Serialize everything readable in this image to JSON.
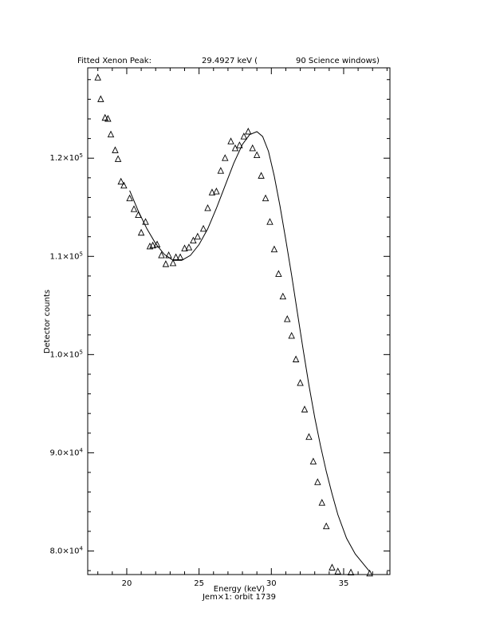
{
  "chart_data": {
    "type": "scatter",
    "title_parts": [
      "Fitted Xenon Peak:",
      "29.4927 keV (",
      "90 Science windows)"
    ],
    "xlabel": "Energy (keV)",
    "subtitle": "Jem×1: orbit 1739",
    "ylabel": "Detector counts",
    "xlim": [
      17.3,
      38.2
    ],
    "ylim": [
      77600,
      129200
    ],
    "x_ticks": [
      20,
      25,
      30,
      35
    ],
    "y_ticks": [
      {
        "value": 80000,
        "mantissa": "8.0×10",
        "exp": "4"
      },
      {
        "value": 90000,
        "mantissa": "9.0×10",
        "exp": "4"
      },
      {
        "value": 100000,
        "mantissa": "1.0×10",
        "exp": "5"
      },
      {
        "value": 110000,
        "mantissa": "1.1×10",
        "exp": "5"
      },
      {
        "value": 120000,
        "mantissa": "1.2×10",
        "exp": "5"
      }
    ],
    "grid": false,
    "series": [
      {
        "kind": "points",
        "marker": "triangle",
        "x": [
          18.0,
          18.2,
          18.5,
          18.7,
          18.9,
          19.2,
          19.4,
          19.6,
          19.8,
          20.2,
          20.5,
          20.8,
          21.0,
          21.3,
          21.6,
          21.8,
          22.1,
          22.4,
          22.7,
          22.9,
          23.2,
          23.4,
          23.7,
          24.0,
          24.3,
          24.6,
          24.9,
          25.3,
          25.6,
          25.9,
          26.2,
          26.5,
          26.8,
          27.2,
          27.5,
          27.8,
          28.1,
          28.4,
          28.7,
          29.0,
          29.3,
          29.6,
          29.9,
          30.2,
          30.5,
          30.8,
          31.1,
          31.4,
          31.7,
          32.0,
          32.3,
          32.6,
          32.9,
          33.2,
          33.5,
          33.8,
          34.2,
          34.6,
          35.5,
          36.8
        ],
        "y": [
          128200,
          126000,
          124100,
          124000,
          122400,
          120800,
          119900,
          117600,
          117200,
          115900,
          114800,
          114200,
          112400,
          113500,
          111000,
          111100,
          111200,
          110100,
          109200,
          110100,
          109300,
          109900,
          109900,
          110800,
          110900,
          111600,
          112000,
          112800,
          114900,
          116500,
          116600,
          118700,
          120000,
          121700,
          121000,
          121300,
          122200,
          122700,
          121000,
          120300,
          118200,
          115900,
          113500,
          110700,
          108200,
          105900,
          103600,
          101900,
          99500,
          97100,
          94400,
          91600,
          89100,
          87000,
          84900,
          82500,
          78300,
          77900,
          77800,
          77700
        ]
      },
      {
        "kind": "fit_line",
        "x": [
          20.2,
          20.8,
          21.4,
          22.0,
          22.6,
          23.2,
          23.8,
          24.4,
          25.0,
          25.6,
          26.2,
          26.8,
          27.4,
          28.0,
          28.5,
          29.0,
          29.4,
          29.8,
          30.2,
          30.6,
          31.0,
          31.4,
          31.8,
          32.2,
          32.6,
          33.0,
          33.4,
          33.8,
          34.2,
          34.6,
          35.2,
          35.8,
          36.8
        ],
        "y": [
          116700,
          114600,
          112800,
          111300,
          110200,
          109600,
          109600,
          110100,
          111200,
          112800,
          114900,
          117200,
          119500,
          121400,
          122400,
          122700,
          122200,
          120700,
          118200,
          115100,
          111700,
          108100,
          104300,
          100500,
          96900,
          93600,
          90700,
          88100,
          85800,
          83700,
          81300,
          79700,
          77900
        ]
      }
    ]
  }
}
